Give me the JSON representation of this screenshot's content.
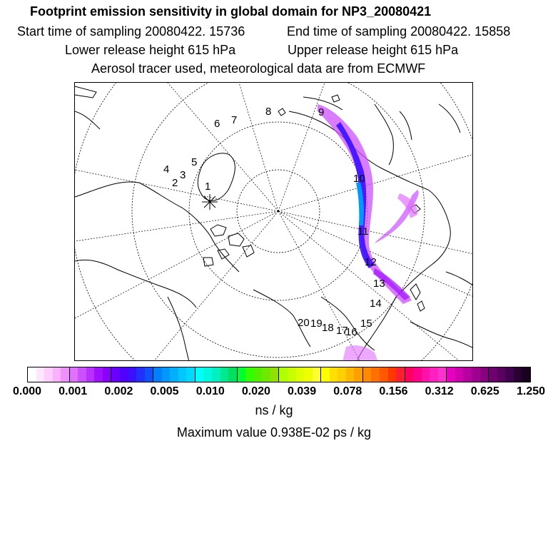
{
  "title": {
    "line1": "Footprint emission sensitivity in global domain for NP3_20080421",
    "start": "Start time of sampling 20080422. 15736",
    "end": "End time of sampling 20080422. 15858",
    "lower": "Lower release height  615 hPa",
    "upper": "Upper release height  615 hPa",
    "line4": "Aerosol tracer used, meteorological data are from ECMWF"
  },
  "map": {
    "trajectory_labels": [
      "1",
      "2",
      "3",
      "4",
      "5",
      "6",
      "7",
      "8",
      "9",
      "10",
      "11",
      "12",
      "13",
      "14",
      "15",
      "16",
      "17",
      "18",
      "19",
      "20"
    ],
    "release_marker": "release-point-star"
  },
  "legend": {
    "tick_labels": [
      "0.000",
      "0.001",
      "0.002",
      "0.005",
      "0.010",
      "0.020",
      "0.039",
      "0.078",
      "0.156",
      "0.312",
      "0.625",
      "1.250"
    ],
    "colors": [
      "#ffffff",
      "#ffe8ff",
      "#ffcdff",
      "#f8b0ff",
      "#f090ff",
      "#e070ff",
      "#cc50ff",
      "#b830ff",
      "#a010ff",
      "#8a00ff",
      "#6a00ff",
      "#5000ff",
      "#3a10ff",
      "#2030ff",
      "#1050ff",
      "#0080ff",
      "#0098ff",
      "#00b0ff",
      "#00c8ff",
      "#00d8ff",
      "#00ffff",
      "#00f8e0",
      "#00f0c0",
      "#00e890",
      "#00e060",
      "#00ff30",
      "#30ff00",
      "#50f000",
      "#70e800",
      "#90e000",
      "#b0ff00",
      "#c8ff00",
      "#e0ff00",
      "#f0ff00",
      "#ffff30",
      "#ffff00",
      "#ffe000",
      "#ffd000",
      "#ffb800",
      "#ffa000",
      "#ff8a00",
      "#ff7000",
      "#ff5800",
      "#ff3800",
      "#ff1e30",
      "#ff0060",
      "#ff0088",
      "#ff10a8",
      "#ff20c0",
      "#ff30d0",
      "#e800c0",
      "#d000b0",
      "#b800a0",
      "#a00090",
      "#880080",
      "#700070",
      "#5a0060",
      "#440050",
      "#2a0030",
      "#1a0020"
    ],
    "unit": "ns / kg",
    "max_value": "Maximum value  0.938E-02 ps / kg"
  }
}
